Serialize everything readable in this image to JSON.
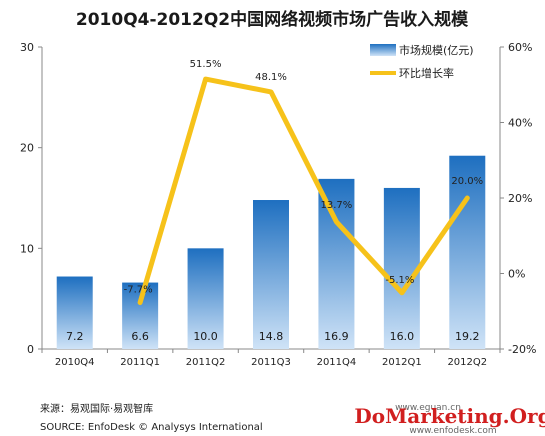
{
  "chart_data": {
    "type": "bar+line",
    "title": "2010Q4-2012Q2中国网络视频市场广告收入规模",
    "categories": [
      "2010Q4",
      "2011Q1",
      "2011Q2",
      "2011Q3",
      "2011Q4",
      "2012Q1",
      "2012Q2"
    ],
    "series": [
      {
        "name": "市场规模(亿元)",
        "type": "bar",
        "axis": "left",
        "values": [
          7.2,
          6.6,
          10.0,
          14.8,
          16.9,
          16.0,
          19.2
        ],
        "labels": [
          "7.2",
          "6.6",
          "10.0",
          "14.8",
          "16.9",
          "16.0",
          "19.2"
        ]
      },
      {
        "name": "环比增长率",
        "type": "line",
        "axis": "right",
        "values": [
          null,
          -7.7,
          51.5,
          48.1,
          13.7,
          -5.1,
          20.0
        ],
        "labels": [
          "",
          "-7.7%",
          "51.5%",
          "48.1%",
          "13.7%",
          "-5.1%",
          "20.0%"
        ]
      }
    ],
    "y_left": {
      "min": 0,
      "max": 30,
      "ticks": [
        "0",
        "10",
        "20",
        "30"
      ]
    },
    "y_right": {
      "min": -20,
      "max": 60,
      "ticks": [
        "-20%",
        "0%",
        "20%",
        "40%",
        "60%"
      ]
    },
    "grid": false,
    "legend_position": "top-right"
  },
  "colors": {
    "bar_top": "#1e6fc0",
    "bar_bottom": "#cfe3f7",
    "line": "#f6c21a"
  },
  "source": {
    "line1": "来源：易观国际·易观智库",
    "line2": "SOURCE: EnfoDesk © Analysys International"
  },
  "watermark": {
    "text": "DoMarketing.Org",
    "url1": "www.eguan.cn",
    "url2": "www.enfodesk.com"
  }
}
